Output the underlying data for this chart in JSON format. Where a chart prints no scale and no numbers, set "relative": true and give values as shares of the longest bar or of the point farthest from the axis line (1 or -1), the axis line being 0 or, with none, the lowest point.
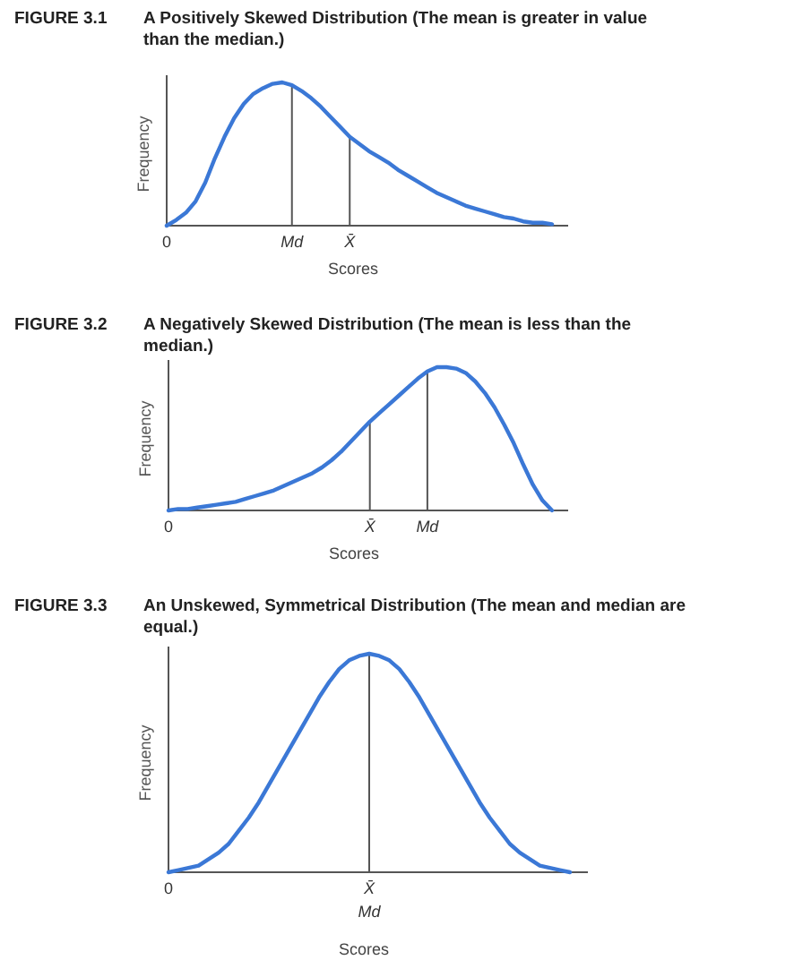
{
  "chart_data": [
    {
      "type": "line",
      "title": "FIGURE 3.1",
      "subtitle": "A Positively Skewed Distribution (The mean is greater in value than the median.)",
      "xlabel": "Scores",
      "ylabel": "Frequency",
      "relative": true,
      "categories": [
        "0",
        null,
        null,
        null,
        null,
        null,
        null,
        null,
        null,
        null,
        null,
        null,
        null,
        "Md",
        null,
        null,
        null,
        null,
        null,
        "X̄",
        null,
        null,
        null,
        null,
        null,
        null,
        null,
        null,
        null,
        null,
        null,
        null,
        null,
        null,
        null,
        null,
        null,
        null,
        null,
        null,
        null
      ],
      "series": [
        {
          "color": "#3b78d6",
          "values": [
            0,
            0.04,
            0.09,
            0.17,
            0.3,
            0.47,
            0.62,
            0.75,
            0.85,
            0.92,
            0.96,
            0.99,
            1,
            0.98,
            0.94,
            0.89,
            0.83,
            0.76,
            0.69,
            0.62,
            0.57,
            0.52,
            0.48,
            0.44,
            0.39,
            0.35,
            0.31,
            0.27,
            0.23,
            0.2,
            0.17,
            0.14,
            0.12,
            0.1,
            0.08,
            0.06,
            0.05,
            0.03,
            0.02,
            0.02,
            0.01
          ]
        }
      ],
      "ref_lines": [
        {
          "axis": "x",
          "value": "Md",
          "color": "#555555"
        },
        {
          "axis": "x",
          "value": "X̄",
          "color": "#555555"
        }
      ]
    },
    {
      "type": "line",
      "title": "FIGURE 3.2",
      "subtitle": "A Negatively Skewed Distribution (The mean is less than the median.)",
      "xlabel": "Scores",
      "ylabel": "Frequency",
      "relative": true,
      "categories": [
        "0",
        null,
        null,
        null,
        null,
        null,
        null,
        null,
        null,
        null,
        null,
        null,
        null,
        null,
        null,
        null,
        null,
        null,
        null,
        null,
        null,
        "X̄",
        null,
        null,
        null,
        null,
        null,
        "Md",
        null,
        null,
        null,
        null,
        null,
        null,
        null,
        null,
        null,
        null,
        null,
        null,
        null
      ],
      "series": [
        {
          "color": "#3b78d6",
          "values": [
            0,
            0.01,
            0.01,
            0.02,
            0.03,
            0.04,
            0.05,
            0.06,
            0.08,
            0.1,
            0.12,
            0.14,
            0.17,
            0.2,
            0.23,
            0.26,
            0.3,
            0.35,
            0.41,
            0.48,
            0.55,
            0.62,
            0.68,
            0.74,
            0.8,
            0.86,
            0.92,
            0.97,
            1,
            1,
            0.99,
            0.96,
            0.9,
            0.82,
            0.72,
            0.6,
            0.47,
            0.32,
            0.18,
            0.07,
            0
          ]
        }
      ],
      "ref_lines": [
        {
          "axis": "x",
          "value": "X̄",
          "color": "#555555"
        },
        {
          "axis": "x",
          "value": "Md",
          "color": "#555555"
        }
      ]
    },
    {
      "type": "line",
      "title": "FIGURE 3.3",
      "subtitle": "An Unskewed, Symmetrical Distribution (The mean and median are equal.)",
      "xlabel": "Scores",
      "ylabel": "Frequency",
      "relative": true,
      "categories": [
        "0",
        null,
        null,
        null,
        null,
        null,
        null,
        null,
        null,
        null,
        null,
        null,
        null,
        null,
        null,
        null,
        null,
        null,
        null,
        null,
        "X̄",
        null,
        null,
        null,
        null,
        null,
        null,
        null,
        null,
        null,
        null,
        null,
        null,
        null,
        null,
        null,
        null,
        null,
        null,
        null,
        null
      ],
      "series": [
        {
          "color": "#3b78d6",
          "values": [
            0,
            0.01,
            0.02,
            0.03,
            0.06,
            0.09,
            0.13,
            0.19,
            0.25,
            0.32,
            0.4,
            0.48,
            0.56,
            0.64,
            0.72,
            0.8,
            0.87,
            0.93,
            0.97,
            0.99,
            1,
            0.99,
            0.97,
            0.93,
            0.87,
            0.8,
            0.72,
            0.64,
            0.56,
            0.48,
            0.4,
            0.32,
            0.25,
            0.19,
            0.13,
            0.09,
            0.06,
            0.03,
            0.02,
            0.01,
            0
          ]
        }
      ],
      "ref_lines": [
        {
          "axis": "x",
          "value": "X̄",
          "color": "#555555"
        }
      ],
      "annotations": [
        "Md"
      ]
    }
  ]
}
